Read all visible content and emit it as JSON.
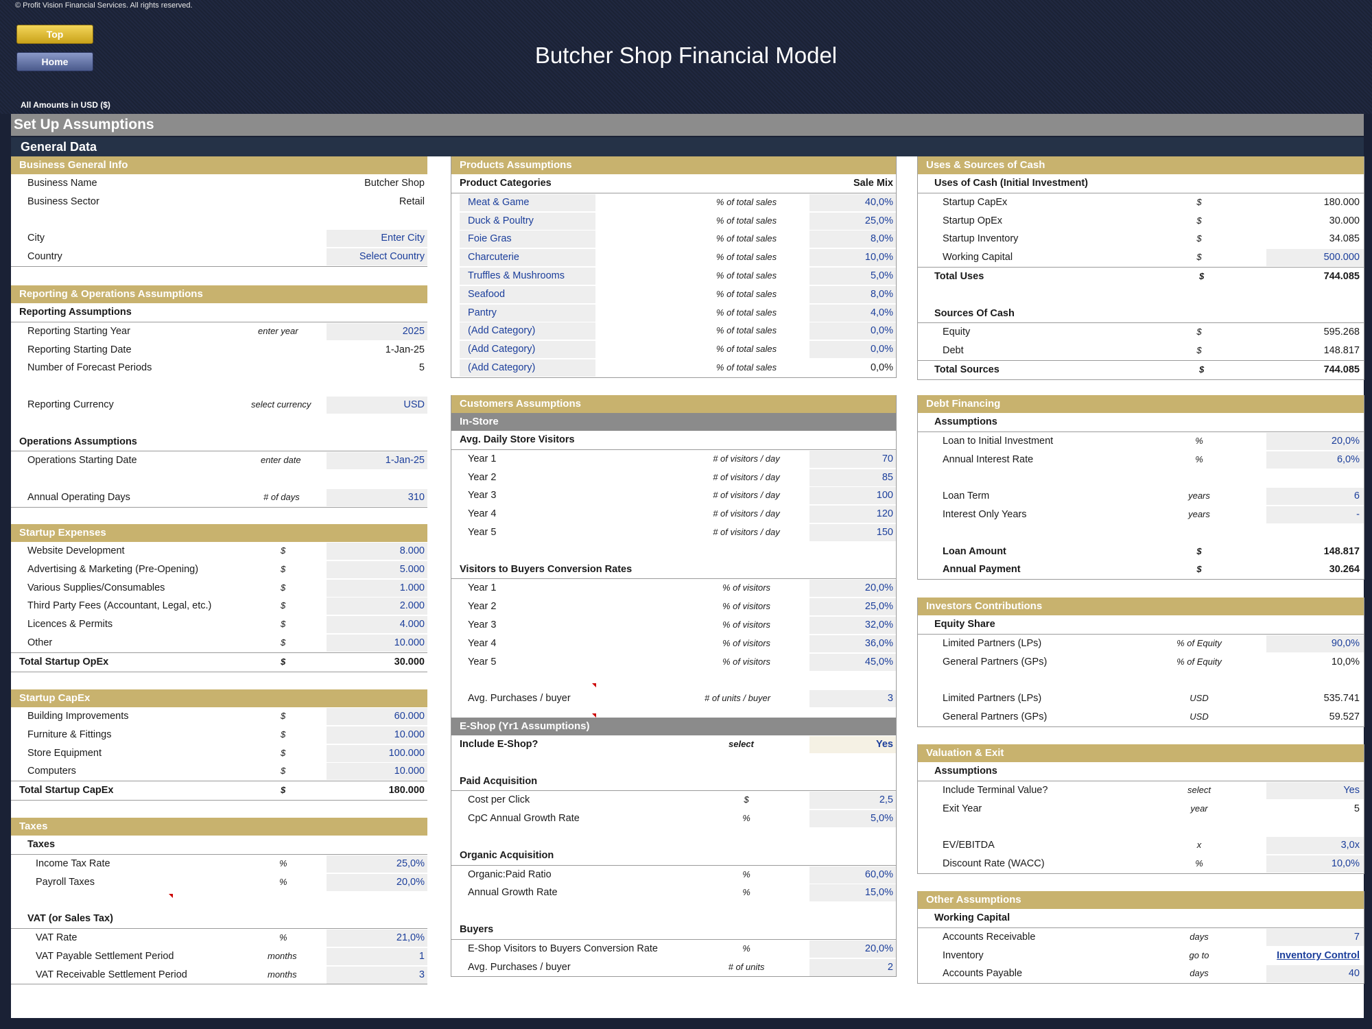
{
  "header": {
    "copyright": "© Profit Vision Financial Services. All rights reserved.",
    "top_button": "Top",
    "home_button": "Home",
    "title": "Butcher Shop Financial Model",
    "amounts_note": "All Amounts in  USD ($)"
  },
  "page": {
    "setup_title": "Set Up Assumptions",
    "general_data": "General Data"
  },
  "business": {
    "title": "Business General Info",
    "rows": [
      {
        "label": "Business Name",
        "value": "Butcher Shop"
      },
      {
        "label": "Business Sector",
        "value": "Retail"
      },
      {
        "label": "City",
        "value": "Enter City"
      },
      {
        "label": "Country",
        "value": "Select Country"
      }
    ]
  },
  "reporting": {
    "title": "Reporting & Operations Assumptions",
    "sub1": "Reporting Assumptions",
    "rows1": [
      {
        "label": "Reporting Starting Year",
        "unit": "enter year",
        "value": "2025"
      },
      {
        "label": "Reporting Starting Date",
        "unit": "",
        "value": "1-Jan-25"
      },
      {
        "label": "Number of Forecast Periods",
        "unit": "",
        "value": "5"
      },
      {
        "label": "Reporting Currency",
        "unit": "select currency",
        "value": "USD"
      }
    ],
    "sub2": "Operations Assumptions",
    "rows2": [
      {
        "label": "Operations Starting Date",
        "unit": "enter date",
        "value": "1-Jan-25"
      },
      {
        "label": "Annual Operating Days",
        "unit": "# of days",
        "value": "310"
      }
    ]
  },
  "startup_exp": {
    "title": "Startup Expenses",
    "rows": [
      {
        "label": "Website Development",
        "unit": "$",
        "value": "8.000"
      },
      {
        "label": "Advertising & Marketing (Pre-Opening)",
        "unit": "$",
        "value": "5.000"
      },
      {
        "label": "Various Supplies/Consumables",
        "unit": "$",
        "value": "1.000"
      },
      {
        "label": "Third Party Fees (Accountant, Legal, etc.)",
        "unit": "$",
        "value": "2.000"
      },
      {
        "label": "Licences & Permits",
        "unit": "$",
        "value": "4.000"
      },
      {
        "label": "Other",
        "unit": "$",
        "value": "10.000"
      }
    ],
    "total": {
      "label": "Total Startup OpEx",
      "unit": "$",
      "value": "30.000"
    }
  },
  "startup_capex": {
    "title": "Startup CapEx",
    "rows": [
      {
        "label": "Building Improvements",
        "unit": "$",
        "value": "60.000"
      },
      {
        "label": "Furniture & Fittings",
        "unit": "$",
        "value": "10.000"
      },
      {
        "label": "Store Equipment",
        "unit": "$",
        "value": "100.000"
      },
      {
        "label": "Computers",
        "unit": "$",
        "value": "10.000"
      }
    ],
    "total": {
      "label": "Total Startup CapEx",
      "unit": "$",
      "value": "180.000"
    }
  },
  "taxes": {
    "title": "Taxes",
    "sub1": "Taxes",
    "rows1": [
      {
        "label": "Income Tax Rate",
        "unit": "%",
        "value": "25,0%"
      },
      {
        "label": "Payroll Taxes",
        "unit": "%",
        "value": "20,0%"
      }
    ],
    "sub2": "VAT (or Sales Tax)",
    "rows2": [
      {
        "label": "VAT Rate",
        "unit": "%",
        "value": "21,0%"
      },
      {
        "label": "VAT Payable Settlement Period",
        "unit": "months",
        "value": "1"
      },
      {
        "label": "VAT Receivable Settlement Period",
        "unit": "months",
        "value": "3"
      }
    ]
  },
  "products": {
    "title": "Products Assumptions",
    "col1": "Product Categories",
    "col2": "Sale Mix",
    "rows": [
      {
        "label": "Meat & Game",
        "unit": "% of total sales",
        "value": "40,0%"
      },
      {
        "label": "Duck & Poultry",
        "unit": "% of total sales",
        "value": "25,0%"
      },
      {
        "label": "Foie Gras",
        "unit": "% of total sales",
        "value": "8,0%"
      },
      {
        "label": "Charcuterie",
        "unit": "% of total sales",
        "value": "10,0%"
      },
      {
        "label": "Truffles & Mushrooms",
        "unit": "% of total sales",
        "value": "5,0%"
      },
      {
        "label": "Seafood",
        "unit": "% of total sales",
        "value": "8,0%"
      },
      {
        "label": "Pantry",
        "unit": "% of total sales",
        "value": "4,0%"
      },
      {
        "label": "(Add Category)",
        "unit": "% of total sales",
        "value": "0,0%"
      },
      {
        "label": "(Add Category)",
        "unit": "% of total sales",
        "value": "0,0%"
      },
      {
        "label": "(Add Category)",
        "unit": "% of total sales",
        "value": "0,0%"
      }
    ]
  },
  "customers": {
    "title": "Customers Assumptions",
    "instore": "In-Store",
    "visitors_title": "Avg. Daily Store Visitors",
    "visitors": [
      {
        "label": "Year 1",
        "unit": "# of visitors / day",
        "value": "70"
      },
      {
        "label": "Year 2",
        "unit": "# of visitors / day",
        "value": "85"
      },
      {
        "label": "Year 3",
        "unit": "# of visitors / day",
        "value": "100"
      },
      {
        "label": "Year 4",
        "unit": "# of visitors / day",
        "value": "120"
      },
      {
        "label": "Year 5",
        "unit": "# of visitors / day",
        "value": "150"
      }
    ],
    "conv_title": "Visitors to Buyers Conversion Rates",
    "conv": [
      {
        "label": "Year 1",
        "unit": "% of visitors",
        "value": "20,0%"
      },
      {
        "label": "Year 2",
        "unit": "% of visitors",
        "value": "25,0%"
      },
      {
        "label": "Year 3",
        "unit": "% of visitors",
        "value": "32,0%"
      },
      {
        "label": "Year 4",
        "unit": "% of visitors",
        "value": "36,0%"
      },
      {
        "label": "Year 5",
        "unit": "% of visitors",
        "value": "45,0%"
      }
    ],
    "avg_purchases": {
      "label": "Avg. Purchases / buyer",
      "unit": "# of units / buyer",
      "value": "3"
    },
    "eshop": "E-Shop (Yr1 Assumptions)",
    "include_eshop": {
      "label": "Include E-Shop?",
      "unit": "select",
      "value": "Yes"
    },
    "paid_title": "Paid Acquisition",
    "paid": [
      {
        "label": "Cost per Click",
        "unit": "$",
        "value": "2,5"
      },
      {
        "label": "CpC Annual Growth Rate",
        "unit": "%",
        "value": "5,0%"
      }
    ],
    "organic_title": "Organic Acquisition",
    "organic": [
      {
        "label": "Organic:Paid Ratio",
        "unit": "%",
        "value": "60,0%"
      },
      {
        "label": "Annual Growth Rate",
        "unit": "%",
        "value": "15,0%"
      }
    ],
    "buyers_title": "Buyers",
    "buyers": [
      {
        "label": "E-Shop Visitors to Buyers Conversion Rate",
        "unit": "%",
        "value": "20,0%"
      },
      {
        "label": "Avg. Purchases / buyer",
        "unit": "# of units",
        "value": "2"
      }
    ]
  },
  "uses": {
    "title": "Uses & Sources of Cash",
    "uses_title": "Uses of Cash (Initial Investment)",
    "uses_rows": [
      {
        "label": "Startup CapEx",
        "unit": "$",
        "value": "180.000"
      },
      {
        "label": "Startup OpEx",
        "unit": "$",
        "value": "30.000"
      },
      {
        "label": "Startup Inventory",
        "unit": "$",
        "value": "34.085"
      },
      {
        "label": "Working Capital",
        "unit": "$",
        "value": "500.000"
      }
    ],
    "total_uses": {
      "label": "Total Uses",
      "unit": "$",
      "value": "744.085"
    },
    "sources_title": "Sources Of Cash",
    "sources_rows": [
      {
        "label": "Equity",
        "unit": "$",
        "value": "595.268"
      },
      {
        "label": "Debt",
        "unit": "$",
        "value": "148.817"
      }
    ],
    "total_sources": {
      "label": "Total Sources",
      "unit": "$",
      "value": "744.085"
    }
  },
  "debt": {
    "title": "Debt Financing",
    "sub": "Assumptions",
    "rows1": [
      {
        "label": "Loan to Initial Investment",
        "unit": "%",
        "value": "20,0%"
      },
      {
        "label": "Annual Interest Rate",
        "unit": "%",
        "value": "6,0%"
      }
    ],
    "rows2": [
      {
        "label": "Loan Term",
        "unit": "years",
        "value": "6"
      },
      {
        "label": "Interest Only Years",
        "unit": "years",
        "value": "-"
      }
    ],
    "rows3": [
      {
        "label": "Loan Amount",
        "unit": "$",
        "value": "148.817"
      },
      {
        "label": "Annual Payment",
        "unit": "$",
        "value": "30.264"
      }
    ]
  },
  "investors": {
    "title": "Investors Contributions",
    "sub": "Equity Share",
    "rows1": [
      {
        "label": "Limited Partners (LPs)",
        "unit": "% of Equity",
        "value": "90,0%"
      },
      {
        "label": "General Partners (GPs)",
        "unit": "% of Equity",
        "value": "10,0%"
      }
    ],
    "rows2": [
      {
        "label": "Limited Partners (LPs)",
        "unit": "USD",
        "value": "535.741"
      },
      {
        "label": "General Partners (GPs)",
        "unit": "USD",
        "value": "59.527"
      }
    ]
  },
  "valuation": {
    "title": "Valuation & Exit",
    "sub": "Assumptions",
    "rows1": [
      {
        "label": "Include Terminal Value?",
        "unit": "select",
        "value": "Yes"
      },
      {
        "label": "Exit Year",
        "unit": "year",
        "value": "5"
      }
    ],
    "rows2": [
      {
        "label": "EV/EBITDA",
        "unit": "x",
        "value": "3,0x"
      },
      {
        "label": "Discount Rate (WACC)",
        "unit": "%",
        "value": "10,0%"
      }
    ]
  },
  "other": {
    "title": "Other Assumptions",
    "sub": "Working Capital",
    "rows": [
      {
        "label": "Accounts Receivable",
        "unit": "days",
        "value": "7"
      },
      {
        "label": "Inventory",
        "unit": "go to",
        "value": "Inventory Control"
      },
      {
        "label": "Accounts Payable",
        "unit": "days",
        "value": "40"
      }
    ]
  }
}
